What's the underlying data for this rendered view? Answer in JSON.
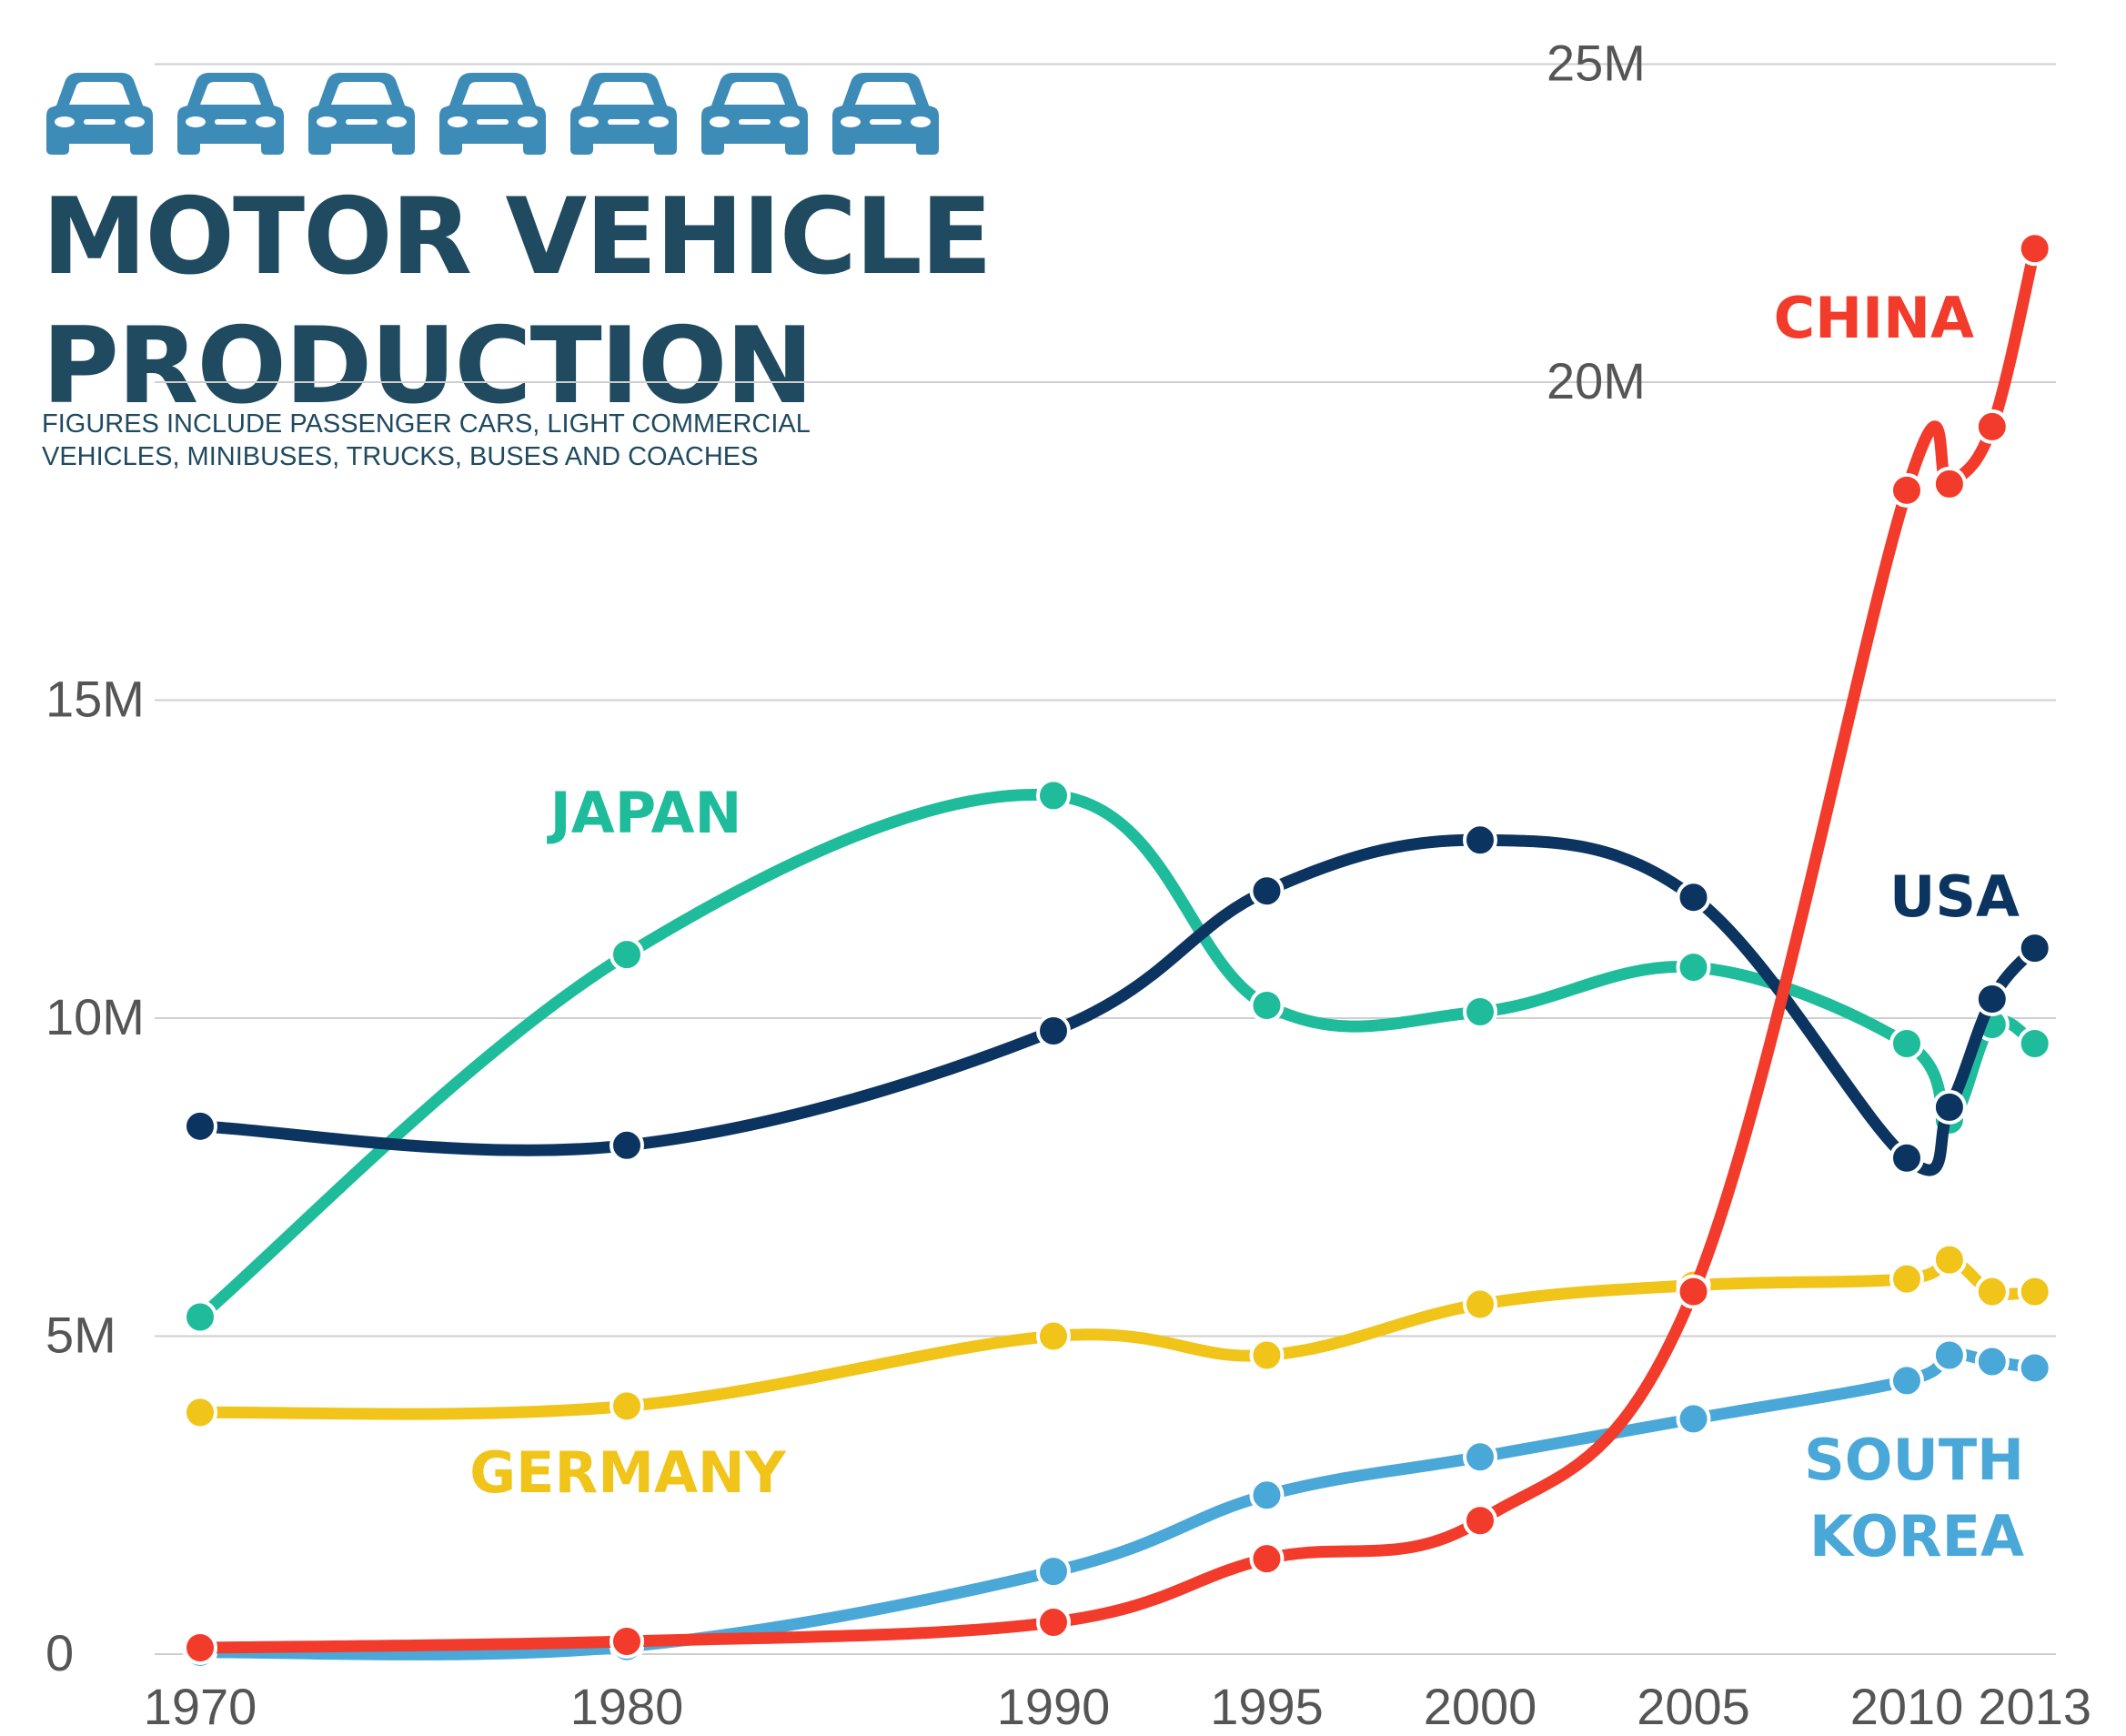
{
  "header": {
    "title_line1": "MOTOR VEHICLE",
    "title_line2": "PRODUCTION",
    "subtitle_line1": "FIGURES INCLUDE PASSENGER CARS, LIGHT COMMERCIAL",
    "subtitle_line2": "VEHICLES, MINIBUSES, TRUCKS, BUSES AND COACHES",
    "icon": "car-icon",
    "icon_count": 7,
    "icon_color": "#3d8bb7",
    "title_color": "#1f4a5f"
  },
  "chart_data": {
    "type": "line",
    "title": "MOTOR VEHICLE PRODUCTION",
    "subtitle": "FIGURES INCLUDE PASSENGER CARS, LIGHT COMMERCIAL VEHICLES, MINIBUSES, TRUCKS, BUSES AND COACHES",
    "xlabel": "",
    "ylabel": "",
    "x": [
      1970,
      1980,
      1990,
      1995,
      2000,
      2005,
      2010,
      2011,
      2012,
      2013
    ],
    "x_ticks": [
      "1970",
      "1980",
      "1990",
      "1995",
      "2000",
      "2005",
      "2010",
      "2013"
    ],
    "y_ticks": [
      "0",
      "5M",
      "10M",
      "15M",
      "20M",
      "25M"
    ],
    "y_tick_values": [
      0,
      5,
      10,
      15,
      20,
      25
    ],
    "ylim": [
      0,
      25
    ],
    "y_unit": "millions",
    "grid": "horizontal",
    "legend": "inline labels",
    "series": [
      {
        "name": "JAPAN",
        "color": "#1fbc9c",
        "values": [
          5.3,
          11.0,
          13.5,
          10.2,
          10.1,
          10.8,
          9.6,
          8.4,
          9.9,
          9.6
        ]
      },
      {
        "name": "USA",
        "color": "#0c3461",
        "values": [
          8.3,
          8.0,
          9.8,
          12.0,
          12.8,
          11.9,
          7.8,
          8.6,
          10.3,
          11.1
        ]
      },
      {
        "name": "GERMANY",
        "color": "#f0c419",
        "values": [
          3.8,
          3.9,
          5.0,
          4.7,
          5.5,
          5.8,
          5.9,
          6.2,
          5.7,
          5.7
        ]
      },
      {
        "name": "SOUTH KOREA",
        "color": "#4aa8d8",
        "values": [
          0.03,
          0.12,
          1.3,
          2.5,
          3.1,
          3.7,
          4.3,
          4.7,
          4.6,
          4.5
        ]
      },
      {
        "name": "CHINA",
        "color": "#f23b2b",
        "values": [
          0.1,
          0.2,
          0.5,
          1.5,
          2.1,
          5.7,
          18.3,
          18.4,
          19.3,
          22.1
        ]
      }
    ],
    "labels": [
      {
        "series": "JAPAN",
        "lines": [
          "JAPAN"
        ]
      },
      {
        "series": "USA",
        "lines": [
          "USA"
        ]
      },
      {
        "series": "GERMANY",
        "lines": [
          "GERMANY"
        ]
      },
      {
        "series": "SOUTH KOREA",
        "lines": [
          "SOUTH",
          "KOREA"
        ]
      },
      {
        "series": "CHINA",
        "lines": [
          "CHINA"
        ]
      }
    ]
  }
}
